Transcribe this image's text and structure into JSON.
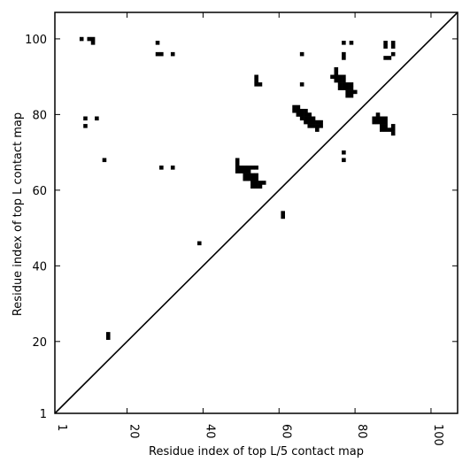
{
  "chart_data": {
    "type": "heatmap",
    "title": "",
    "xlabel": "Residue index of top L/5 contact map",
    "ylabel": "Residue index of top L contact map",
    "xlim": [
      1,
      107
    ],
    "ylim": [
      1,
      107
    ],
    "x_ticks": [
      1,
      20,
      40,
      60,
      80,
      100
    ],
    "y_ticks": [
      1,
      20,
      40,
      60,
      80,
      100
    ],
    "x_tick_labels": [
      "1",
      "20",
      "40",
      "60",
      "80",
      "100"
    ],
    "y_tick_labels": [
      "1",
      "20",
      "40",
      "60",
      "80",
      "100"
    ],
    "x_tick_rotation_deg": 90,
    "diagonal_line": true,
    "cell_color": "#000000",
    "background_color": "#ffffff",
    "grid": false,
    "contacts": [
      [
        8,
        100
      ],
      [
        10,
        100
      ],
      [
        11,
        100
      ],
      [
        11,
        99
      ],
      [
        9,
        79
      ],
      [
        12,
        79
      ],
      [
        9,
        77
      ],
      [
        14,
        68
      ],
      [
        15,
        22
      ],
      [
        15,
        21
      ],
      [
        28,
        99
      ],
      [
        28,
        96
      ],
      [
        29,
        96
      ],
      [
        32,
        96
      ],
      [
        29,
        66
      ],
      [
        32,
        66
      ],
      [
        39,
        46
      ],
      [
        49,
        68
      ],
      [
        49,
        67
      ],
      [
        49,
        66
      ],
      [
        50,
        66
      ],
      [
        51,
        66
      ],
      [
        52,
        66
      ],
      [
        53,
        66
      ],
      [
        54,
        66
      ],
      [
        49,
        65
      ],
      [
        50,
        65
      ],
      [
        51,
        65
      ],
      [
        52,
        65
      ],
      [
        51,
        64
      ],
      [
        52,
        64
      ],
      [
        53,
        64
      ],
      [
        54,
        64
      ],
      [
        51,
        63
      ],
      [
        52,
        63
      ],
      [
        53,
        63
      ],
      [
        54,
        63
      ],
      [
        53,
        62
      ],
      [
        54,
        62
      ],
      [
        55,
        62
      ],
      [
        56,
        62
      ],
      [
        53,
        61
      ],
      [
        54,
        61
      ],
      [
        55,
        61
      ],
      [
        54,
        90
      ],
      [
        54,
        89
      ],
      [
        54,
        88
      ],
      [
        55,
        88
      ],
      [
        61,
        54
      ],
      [
        61,
        53
      ],
      [
        66,
        96
      ],
      [
        66,
        88
      ],
      [
        64,
        82
      ],
      [
        65,
        82
      ],
      [
        64,
        81
      ],
      [
        65,
        81
      ],
      [
        66,
        81
      ],
      [
        67,
        81
      ],
      [
        65,
        80
      ],
      [
        66,
        80
      ],
      [
        67,
        80
      ],
      [
        68,
        80
      ],
      [
        66,
        79
      ],
      [
        67,
        79
      ],
      [
        68,
        79
      ],
      [
        69,
        79
      ],
      [
        67,
        78
      ],
      [
        68,
        78
      ],
      [
        69,
        78
      ],
      [
        70,
        78
      ],
      [
        71,
        78
      ],
      [
        68,
        77
      ],
      [
        69,
        77
      ],
      [
        70,
        77
      ],
      [
        71,
        77
      ],
      [
        70,
        76
      ],
      [
        75,
        92
      ],
      [
        75,
        91
      ],
      [
        74,
        90
      ],
      [
        75,
        90
      ],
      [
        76,
        90
      ],
      [
        77,
        90
      ],
      [
        75,
        89
      ],
      [
        76,
        89
      ],
      [
        77,
        89
      ],
      [
        76,
        88
      ],
      [
        77,
        88
      ],
      [
        78,
        88
      ],
      [
        79,
        88
      ],
      [
        76,
        87
      ],
      [
        77,
        87
      ],
      [
        78,
        87
      ],
      [
        79,
        87
      ],
      [
        78,
        86
      ],
      [
        79,
        86
      ],
      [
        80,
        86
      ],
      [
        78,
        85
      ],
      [
        79,
        85
      ],
      [
        77,
        99
      ],
      [
        79,
        99
      ],
      [
        77,
        96
      ],
      [
        77,
        95
      ],
      [
        77,
        70
      ],
      [
        77,
        68
      ],
      [
        88,
        99
      ],
      [
        88,
        98
      ],
      [
        90,
        99
      ],
      [
        90,
        98
      ],
      [
        88,
        95
      ],
      [
        89,
        95
      ],
      [
        90,
        96
      ],
      [
        86,
        80
      ],
      [
        85,
        79
      ],
      [
        86,
        79
      ],
      [
        87,
        79
      ],
      [
        88,
        79
      ],
      [
        85,
        78
      ],
      [
        86,
        78
      ],
      [
        87,
        78
      ],
      [
        88,
        78
      ],
      [
        87,
        77
      ],
      [
        88,
        77
      ],
      [
        87,
        76
      ],
      [
        88,
        76
      ],
      [
        89,
        76
      ],
      [
        90,
        77
      ],
      [
        90,
        76
      ],
      [
        90,
        75
      ]
    ]
  }
}
